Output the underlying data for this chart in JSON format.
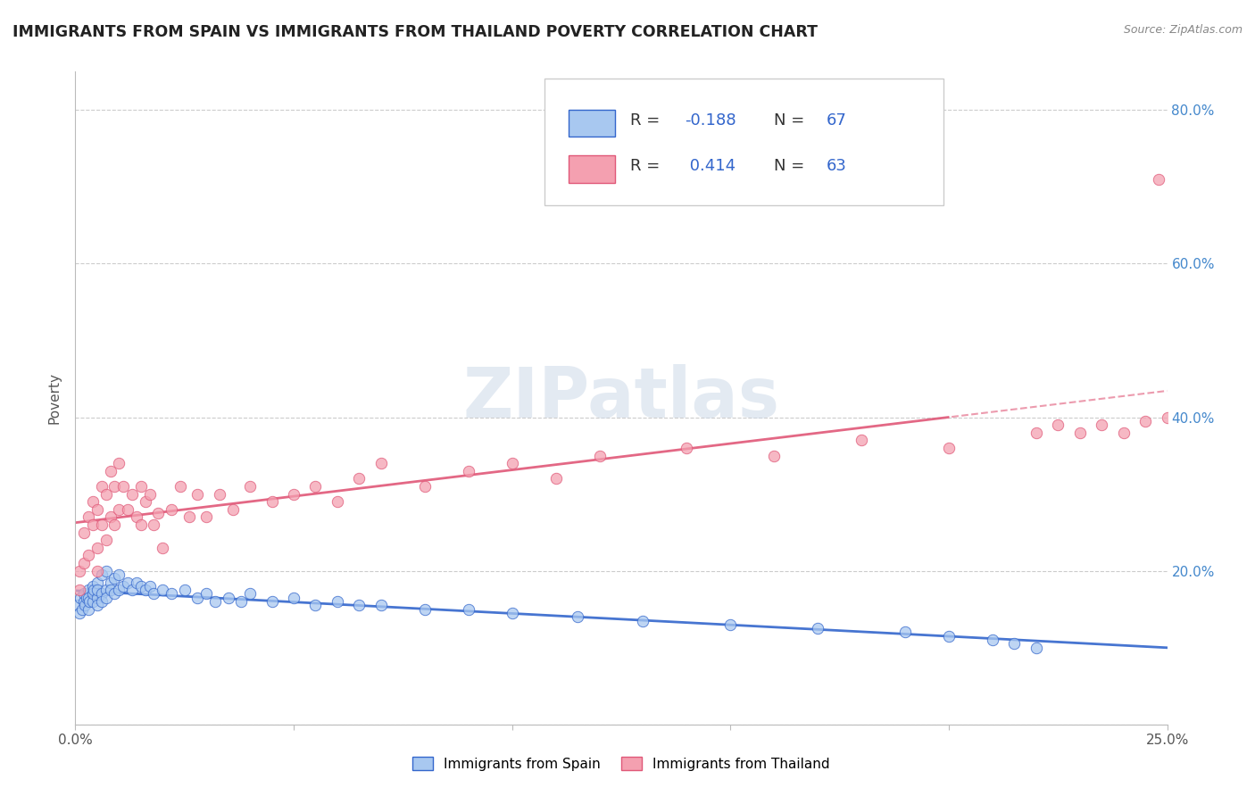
{
  "title": "IMMIGRANTS FROM SPAIN VS IMMIGRANTS FROM THAILAND POVERTY CORRELATION CHART",
  "source": "Source: ZipAtlas.com",
  "ylabel": "Poverty",
  "xmin": 0.0,
  "xmax": 0.25,
  "ymin": 0.0,
  "ymax": 0.85,
  "yticks": [
    0.0,
    0.2,
    0.4,
    0.6,
    0.8
  ],
  "ytick_labels_right": [
    "",
    "20.0%",
    "40.0%",
    "60.0%",
    "80.0%"
  ],
  "xticks": [
    0.0,
    0.05,
    0.1,
    0.15,
    0.2,
    0.25
  ],
  "xtick_labels": [
    "0.0%",
    "",
    "",
    "",
    "",
    "25.0%"
  ],
  "legend_spain_label": "Immigrants from Spain",
  "legend_thailand_label": "Immigrants from Thailand",
  "R_spain": -0.188,
  "N_spain": 67,
  "R_thailand": 0.414,
  "N_thailand": 63,
  "color_spain": "#a8c8f0",
  "color_thailand": "#f4a0b0",
  "line_color_spain": "#3366cc",
  "line_color_thailand": "#e05878",
  "watermark": "ZIPatlas",
  "spain_x": [
    0.0005,
    0.001,
    0.0012,
    0.0015,
    0.002,
    0.002,
    0.0022,
    0.0025,
    0.003,
    0.003,
    0.003,
    0.0032,
    0.004,
    0.004,
    0.004,
    0.0042,
    0.005,
    0.005,
    0.005,
    0.005,
    0.006,
    0.006,
    0.006,
    0.007,
    0.007,
    0.007,
    0.008,
    0.008,
    0.009,
    0.009,
    0.01,
    0.01,
    0.011,
    0.012,
    0.013,
    0.014,
    0.015,
    0.016,
    0.017,
    0.018,
    0.02,
    0.022,
    0.025,
    0.028,
    0.03,
    0.032,
    0.035,
    0.038,
    0.04,
    0.045,
    0.05,
    0.055,
    0.06,
    0.065,
    0.07,
    0.08,
    0.09,
    0.1,
    0.115,
    0.13,
    0.15,
    0.17,
    0.19,
    0.2,
    0.21,
    0.215,
    0.22
  ],
  "spain_y": [
    0.155,
    0.145,
    0.165,
    0.15,
    0.16,
    0.17,
    0.155,
    0.165,
    0.175,
    0.15,
    0.165,
    0.16,
    0.18,
    0.16,
    0.17,
    0.175,
    0.185,
    0.165,
    0.175,
    0.155,
    0.195,
    0.17,
    0.16,
    0.2,
    0.175,
    0.165,
    0.185,
    0.175,
    0.19,
    0.17,
    0.195,
    0.175,
    0.18,
    0.185,
    0.175,
    0.185,
    0.18,
    0.175,
    0.18,
    0.17,
    0.175,
    0.17,
    0.175,
    0.165,
    0.17,
    0.16,
    0.165,
    0.16,
    0.17,
    0.16,
    0.165,
    0.155,
    0.16,
    0.155,
    0.155,
    0.15,
    0.15,
    0.145,
    0.14,
    0.135,
    0.13,
    0.125,
    0.12,
    0.115,
    0.11,
    0.105,
    0.1
  ],
  "thailand_x": [
    0.001,
    0.001,
    0.002,
    0.002,
    0.003,
    0.003,
    0.004,
    0.004,
    0.005,
    0.005,
    0.005,
    0.006,
    0.006,
    0.007,
    0.007,
    0.008,
    0.008,
    0.009,
    0.009,
    0.01,
    0.01,
    0.011,
    0.012,
    0.013,
    0.014,
    0.015,
    0.015,
    0.016,
    0.017,
    0.018,
    0.019,
    0.02,
    0.022,
    0.024,
    0.026,
    0.028,
    0.03,
    0.033,
    0.036,
    0.04,
    0.045,
    0.05,
    0.055,
    0.06,
    0.065,
    0.07,
    0.08,
    0.09,
    0.1,
    0.11,
    0.12,
    0.14,
    0.16,
    0.18,
    0.2,
    0.22,
    0.225,
    0.23,
    0.235,
    0.24,
    0.245,
    0.248,
    0.25
  ],
  "thailand_y": [
    0.175,
    0.2,
    0.21,
    0.25,
    0.22,
    0.27,
    0.26,
    0.29,
    0.23,
    0.2,
    0.28,
    0.31,
    0.26,
    0.3,
    0.24,
    0.33,
    0.27,
    0.31,
    0.26,
    0.34,
    0.28,
    0.31,
    0.28,
    0.3,
    0.27,
    0.26,
    0.31,
    0.29,
    0.3,
    0.26,
    0.275,
    0.23,
    0.28,
    0.31,
    0.27,
    0.3,
    0.27,
    0.3,
    0.28,
    0.31,
    0.29,
    0.3,
    0.31,
    0.29,
    0.32,
    0.34,
    0.31,
    0.33,
    0.34,
    0.32,
    0.35,
    0.36,
    0.35,
    0.37,
    0.36,
    0.38,
    0.39,
    0.38,
    0.39,
    0.38,
    0.395,
    0.71,
    0.4
  ]
}
